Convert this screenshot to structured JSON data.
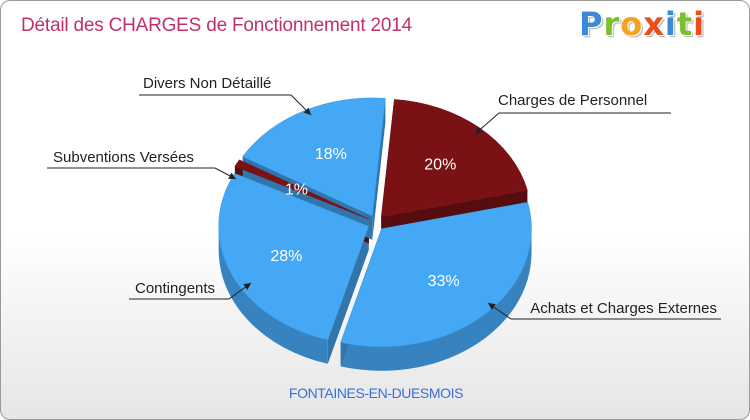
{
  "title": "Détail des CHARGES de Fonctionnement 2014",
  "logo": {
    "text": "Proxiti",
    "letters": [
      "P",
      "r",
      "o",
      "x",
      "i",
      "t",
      "i"
    ]
  },
  "footer": "FONTAINES-EN-DUESMOIS",
  "colors": {
    "blue": "#45a8f5",
    "dark_red": "#7a1215",
    "title": "#c0306a",
    "footer": "#3a6fd8"
  },
  "chart_data": {
    "type": "pie",
    "title": "Détail des CHARGES de Fonctionnement 2014",
    "slices": [
      {
        "name": "Charges de Personnel",
        "value": 20,
        "label": "20%",
        "color": "#7a1215"
      },
      {
        "name": "Achats et Charges Externes",
        "value": 33,
        "label": "33%",
        "color": "#45a8f5"
      },
      {
        "name": "Contingents",
        "value": 28,
        "label": "28%",
        "color": "#45a8f5"
      },
      {
        "name": "Subventions Versées",
        "value": 1,
        "label": "1%",
        "color": "#7a1215"
      },
      {
        "name": "Divers Non Détaillé",
        "value": 18,
        "label": "18%",
        "color": "#45a8f5"
      }
    ]
  }
}
